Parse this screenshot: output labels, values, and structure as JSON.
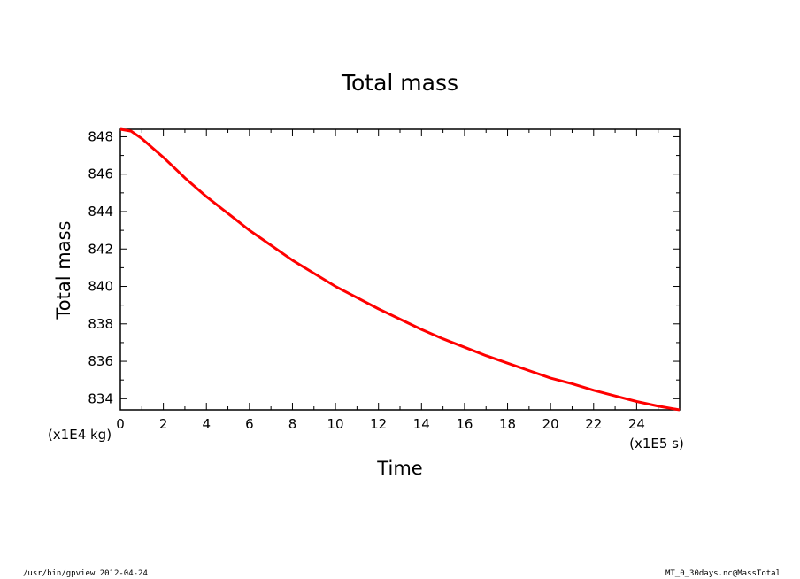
{
  "chart_data": {
    "type": "line",
    "title": "Total mass",
    "xlabel": "Time",
    "ylabel": "Total mass",
    "x_unit_label": "(x1E5 s)",
    "y_unit_label": "(x1E4 kg)",
    "xlim": [
      0,
      26
    ],
    "ylim": [
      833.4,
      848.4
    ],
    "x_ticks": [
      "0",
      "2",
      "4",
      "6",
      "8",
      "10",
      "12",
      "14",
      "16",
      "18",
      "20",
      "22",
      "24"
    ],
    "y_ticks": [
      "834",
      "836",
      "838",
      "840",
      "842",
      "844",
      "846",
      "848"
    ],
    "x_tick_values": [
      0,
      2,
      4,
      6,
      8,
      10,
      12,
      14,
      16,
      18,
      20,
      22,
      24
    ],
    "y_tick_values": [
      834,
      836,
      838,
      840,
      842,
      844,
      846,
      848
    ],
    "grid": false,
    "series": [
      {
        "color": "#ff0000",
        "x": [
          0,
          0.5,
          1,
          2,
          3,
          4,
          5,
          6,
          7,
          8,
          9,
          10,
          11,
          12,
          13,
          14,
          15,
          16,
          17,
          18,
          19,
          20,
          21,
          22,
          23,
          24,
          25,
          26
        ],
        "values": [
          848.4,
          848.3,
          847.9,
          846.9,
          845.8,
          844.8,
          843.9,
          843.0,
          842.2,
          841.4,
          840.7,
          840.0,
          839.4,
          838.8,
          838.25,
          837.7,
          837.2,
          836.75,
          836.3,
          835.9,
          835.5,
          835.1,
          834.8,
          834.45,
          834.15,
          833.85,
          833.6,
          833.4
        ]
      }
    ]
  },
  "footer": {
    "left": "/usr/bin/gpview  2012-04-24",
    "right": "MT_0_30days.nc@MassTotal"
  }
}
